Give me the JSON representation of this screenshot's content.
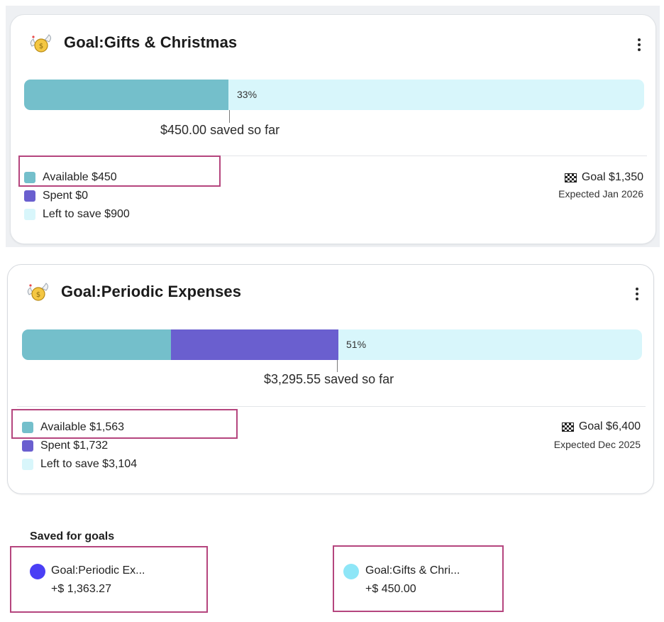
{
  "cards": [
    {
      "title": "Goal:Gifts & Christmas",
      "progress_percent_label": "33%",
      "progress": {
        "available": 0.33,
        "spent": 0.0,
        "left": 0.67
      },
      "saved_text": "$450.00 saved so far",
      "legend": {
        "available": "Available $450",
        "spent": "Spent  $0",
        "left": "Left to save  $900"
      },
      "goal_label": "Goal $1,350",
      "expected": "Expected Jan 2026"
    },
    {
      "title": "Goal:Periodic Expenses",
      "progress_percent_label": "51%",
      "progress": {
        "available": 0.24,
        "spent": 0.27,
        "left": 0.49
      },
      "saved_text": "$3,295.55 saved so far",
      "legend": {
        "available": "Available $1,563",
        "spent": "Spent  $1,732",
        "left": "Left to save  $3,104"
      },
      "goal_label": "Goal $6,400",
      "expected": "Expected Dec 2025"
    }
  ],
  "saved_for_goals": {
    "title": "Saved for goals",
    "items": [
      {
        "name": "Goal:Periodic Ex...",
        "amount": "+$ 1,363.27",
        "color": "#4a3ff5"
      },
      {
        "name": "Goal:Gifts & Chri...",
        "amount": "+$ 450.00",
        "color": "#8ee6f7"
      }
    ]
  },
  "colors": {
    "available": "#74bfcb",
    "spent": "#6a5fcf",
    "left_to_save": "#d8f6fb",
    "highlight": "#b5457e"
  },
  "icons": [
    "money-bag-wings-icon",
    "kebab-menu-icon",
    "checkered-flag-icon"
  ]
}
